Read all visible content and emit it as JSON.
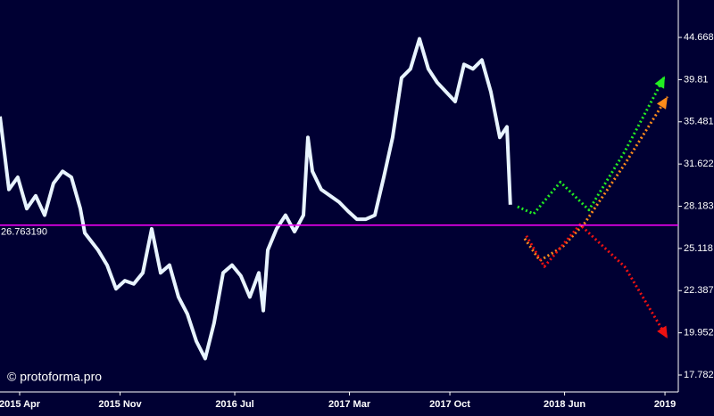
{
  "chart_data": {
    "type": "line",
    "watermark": "© protoforma.pro",
    "background": "#000033",
    "log_scale": true,
    "xlim": [
      1.63,
      48.93
    ],
    "ylim": [
      16.98,
      49.47
    ],
    "xticks": [
      {
        "value": 3,
        "label": "2015 Apr"
      },
      {
        "value": 10,
        "label": "2015 Nov"
      },
      {
        "value": 18,
        "label": "2016 Jul"
      },
      {
        "value": 26,
        "label": "2017 Mar"
      },
      {
        "value": 33,
        "label": "2017 Oct"
      },
      {
        "value": 41,
        "label": "2018 Jun"
      },
      {
        "value": 48,
        "label": "2019"
      }
    ],
    "yticks": [
      44.668,
      39.81,
      35.481,
      31.622,
      28.183,
      25.118,
      22.387,
      19.952,
      17.782
    ],
    "hlines": [
      {
        "value": 26.76319,
        "label": "26.763190",
        "color": "#ff00ff"
      }
    ],
    "series": [
      {
        "color": "#e8f4ff",
        "style": "solid",
        "x": [
          1.63,
          2.25,
          2.87,
          3.5,
          4.12,
          4.74,
          5.36,
          5.99,
          6.61,
          7.23,
          7.54,
          7.85,
          8.47,
          9.1,
          9.72,
          10.34,
          10.96,
          11.59,
          12.21,
          12.83,
          13.45,
          14.08,
          14.7,
          15.32,
          15.94,
          16.56,
          17.19,
          17.81,
          18.43,
          19.05,
          19.68,
          19.99,
          20.3,
          20.92,
          21.54,
          22.17,
          22.79,
          23.1,
          23.41,
          24.03,
          24.65,
          25.28,
          25.9,
          26.52,
          27.14,
          27.77,
          28.39,
          29.01,
          29.63,
          30.25,
          30.88,
          31.5,
          32.12,
          32.74,
          33.37,
          33.99,
          34.61,
          35.23,
          35.86,
          36.48,
          36.98,
          37.22
        ],
        "values": [
          36,
          29.5,
          30.5,
          28,
          29,
          27.5,
          30,
          31,
          30.5,
          28,
          26.2,
          25.8,
          25,
          24,
          22.5,
          23,
          22.8,
          23.5,
          26.5,
          23.5,
          24,
          22,
          21,
          19.5,
          18.6,
          20.5,
          23.5,
          24,
          23.3,
          22,
          23.5,
          21.2,
          25,
          26.5,
          27.5,
          26.3,
          27.5,
          34,
          31,
          29.5,
          29,
          28.5,
          27.8,
          27.2,
          27.2,
          27.5,
          30.5,
          34,
          40,
          41,
          44.5,
          41,
          39.5,
          38.5,
          37.5,
          41.5,
          41,
          42,
          38.5,
          34,
          35,
          28.3
        ]
      },
      {
        "color": "#22ee22",
        "style": "dotted",
        "arrow": true,
        "x": [
          37.72,
          38.84,
          40.71,
          42.7,
          45.19,
          47.99
        ],
        "values": [
          28.15,
          27.6,
          30.1,
          27.9,
          32.7,
          40.2
        ]
      },
      {
        "color": "#ff8c1a",
        "style": "dotted",
        "arrow": true,
        "x": [
          38.22,
          39.28,
          40.83,
          42.39,
          45.19,
          48.18
        ],
        "values": [
          25.8,
          24.3,
          25.2,
          26.9,
          31.6,
          38
        ]
      },
      {
        "color": "#ee1111",
        "style": "dotted",
        "arrow": true,
        "x": [
          38.34,
          39.59,
          42.08,
          45.19,
          48.18
        ],
        "values": [
          26,
          23.9,
          26.8,
          23.9,
          19.65
        ]
      }
    ]
  }
}
